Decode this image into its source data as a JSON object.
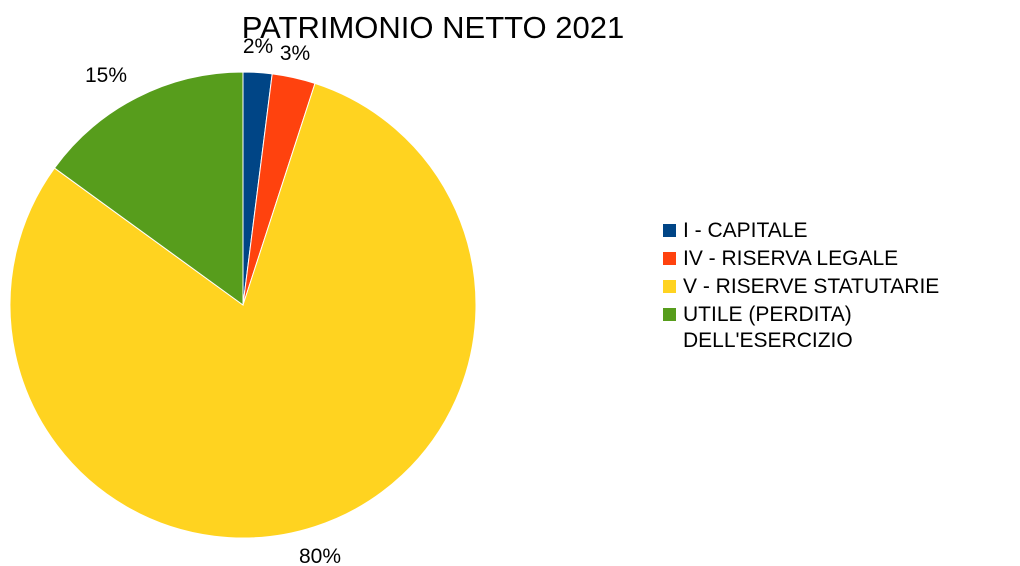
{
  "chart_data": {
    "type": "pie",
    "title": "PATRIMONIO NETTO 2021",
    "slices": [
      {
        "name": "I - CAPITALE",
        "value": 2,
        "label": "2%",
        "color": "#004586"
      },
      {
        "name": "IV - RISERVA LEGALE",
        "value": 3,
        "label": "3%",
        "color": "#ff420e"
      },
      {
        "name": "V - RISERVE STATUTARIE",
        "value": 80,
        "label": "80%",
        "color": "#ffd320"
      },
      {
        "name": "UTILE (PERDITA) DELL'ESERCIZIO",
        "value": 15,
        "label": "15%",
        "color": "#579d1c"
      }
    ],
    "legend": {
      "position": "right",
      "items": [
        "I - CAPITALE",
        "IV - RISERVA LEGALE",
        "V - RISERVE STATUTARIE",
        "UTILE (PERDITA)\nDELL'ESERCIZIO"
      ]
    }
  }
}
